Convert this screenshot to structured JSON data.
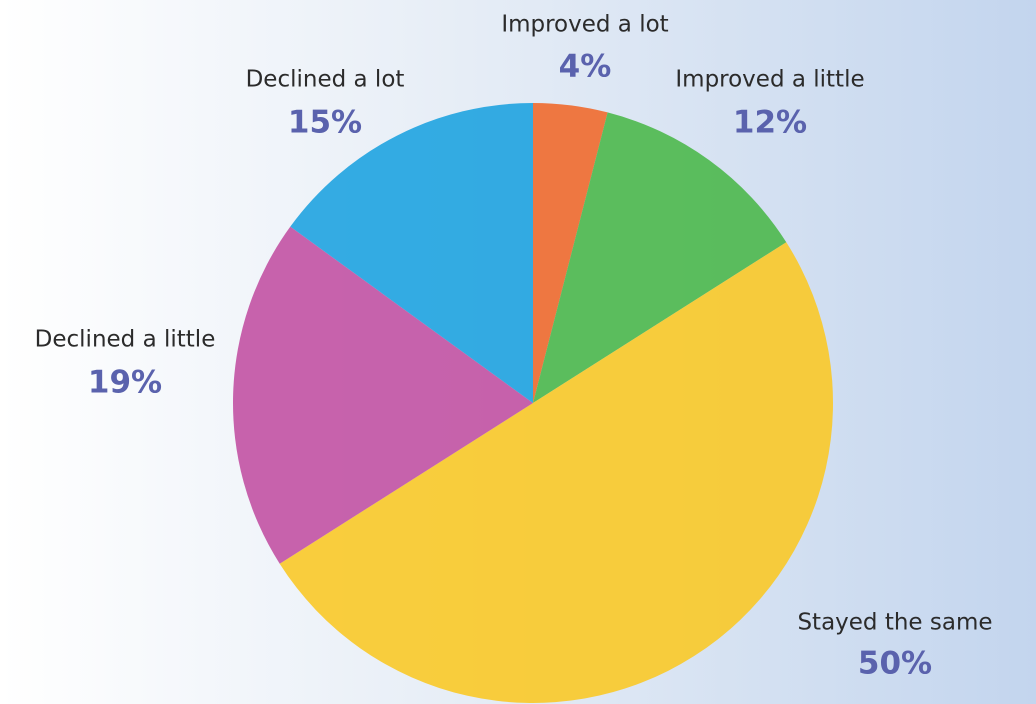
{
  "chart_data": {
    "type": "pie",
    "categories": [
      "Improved a lot",
      "Improved a little",
      "Stayed the same",
      "Declined a little",
      "Declined a lot"
    ],
    "values": [
      4,
      12,
      50,
      19,
      15
    ],
    "value_labels": [
      "4%",
      "12%",
      "50%",
      "19%",
      "15%"
    ],
    "colors": [
      "#ef6a2e",
      "#4db84c",
      "#f9c928",
      "#c252a3",
      "#1fa3e0"
    ]
  }
}
